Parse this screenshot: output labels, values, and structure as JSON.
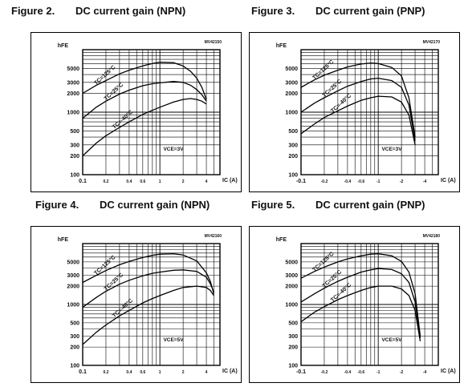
{
  "charts": [
    {
      "figure_label": "Figure 2.",
      "figure_title": "DC current gain (NPN)",
      "code": "MV42150",
      "condition": "VCE=3V",
      "polarity": "npn",
      "chart_data": {
        "type": "line",
        "title": "DC current gain (NPN)",
        "xlabel": "IC (A)",
        "ylabel": "hFE",
        "xscale": "log",
        "yscale": "log",
        "xlim": [
          0.1,
          6
        ],
        "ylim": [
          100,
          10000
        ],
        "grid": true,
        "x_ticks": [
          "0.1",
          "0.2",
          "0.4",
          "0.6",
          "1",
          "2",
          "4"
        ],
        "y_ticks": [
          "100",
          "200",
          "300",
          "500",
          "1000",
          "2000",
          "3000",
          "5000"
        ],
        "series": [
          {
            "name": "TC=125°C",
            "x": [
              0.1,
              0.15,
              0.2,
              0.3,
              0.4,
              0.6,
              0.8,
              1,
              1.5,
              2,
              2.5,
              3,
              3.5,
              4
            ],
            "y": [
              2000,
              2700,
              3200,
              4100,
              4700,
              5500,
              6000,
              6300,
              6200,
              5500,
              4500,
              3500,
              2500,
              1600
            ]
          },
          {
            "name": "TC=25°C",
            "x": [
              0.1,
              0.15,
              0.2,
              0.3,
              0.4,
              0.6,
              0.8,
              1,
              1.5,
              2,
              2.5,
              3,
              3.5,
              4
            ],
            "y": [
              800,
              1200,
              1500,
              1950,
              2250,
              2650,
              2850,
              2950,
              3100,
              3000,
              2700,
              2300,
              1900,
              1500
            ]
          },
          {
            "name": "TC=-40°C",
            "x": [
              0.1,
              0.15,
              0.2,
              0.3,
              0.4,
              0.6,
              0.8,
              1,
              1.5,
              2,
              2.5,
              3,
              3.5,
              4
            ],
            "y": [
              200,
              320,
              420,
              570,
              700,
              920,
              1070,
              1200,
              1450,
              1600,
              1650,
              1600,
              1500,
              1350
            ]
          }
        ]
      }
    },
    {
      "figure_label": "Figure 3.",
      "figure_title": "DC current gain (PNP)",
      "code": "MV42170",
      "condition": "VCE=3V",
      "polarity": "pnp",
      "chart_data": {
        "type": "line",
        "title": "DC current gain (PNP)",
        "xlabel": "IC (A)",
        "ylabel": "hFE",
        "xscale": "log",
        "yscale": "log",
        "xlim": [
          -0.1,
          -6
        ],
        "ylim": [
          100,
          10000
        ],
        "grid": true,
        "x_ticks": [
          "-0.1",
          "-0.2",
          "-0.4",
          "-0.6",
          "-1",
          "-2",
          "-4"
        ],
        "y_ticks": [
          "100",
          "200",
          "300",
          "500",
          "1000",
          "2000",
          "3000",
          "5000"
        ],
        "series": [
          {
            "name": "TC=125°C",
            "x": [
              -0.1,
              -0.15,
              -0.2,
              -0.3,
              -0.4,
              -0.6,
              -0.8,
              -1,
              -1.5,
              -2,
              -2.5,
              -3
            ],
            "y": [
              2500,
              3300,
              3900,
              4700,
              5300,
              5900,
              6100,
              6000,
              5200,
              3800,
              1700,
              400
            ]
          },
          {
            "name": "TC=25°C",
            "x": [
              -0.1,
              -0.15,
              -0.2,
              -0.3,
              -0.4,
              -0.6,
              -0.8,
              -1,
              -1.5,
              -2,
              -2.5,
              -3
            ],
            "y": [
              1000,
              1400,
              1700,
              2200,
              2600,
              3100,
              3400,
              3500,
              3200,
              2500,
              1300,
              350
            ]
          },
          {
            "name": "TC=-40°C",
            "x": [
              -0.1,
              -0.15,
              -0.2,
              -0.3,
              -0.4,
              -0.6,
              -0.8,
              -1,
              -1.5,
              -2,
              -2.5,
              -3
            ],
            "y": [
              450,
              650,
              820,
              1050,
              1250,
              1550,
              1700,
              1800,
              1750,
              1450,
              900,
              300
            ]
          }
        ]
      }
    },
    {
      "figure_label": "Figure 4.",
      "figure_title": "DC current gain (NPN)",
      "code": "MV42160",
      "condition": "VCE=5V",
      "polarity": "npn",
      "chart_data": {
        "type": "line",
        "title": "DC current gain (NPN)",
        "xlabel": "IC (A)",
        "ylabel": "hFE",
        "xscale": "log",
        "yscale": "log",
        "xlim": [
          0.1,
          6
        ],
        "ylim": [
          100,
          10000
        ],
        "grid": true,
        "x_ticks": [
          "0.1",
          "0.2",
          "0.4",
          "0.6",
          "1",
          "2",
          "4"
        ],
        "y_ticks": [
          "100",
          "200",
          "300",
          "500",
          "1000",
          "2000",
          "3000",
          "5000"
        ],
        "series": [
          {
            "name": "TC=125°C",
            "x": [
              0.1,
              0.15,
              0.2,
              0.3,
              0.4,
              0.6,
              0.8,
              1,
              1.5,
              2,
              3,
              4,
              4.5,
              5
            ],
            "y": [
              2300,
              3000,
              3600,
              4500,
              5100,
              5900,
              6400,
              6700,
              6800,
              6500,
              5200,
              3300,
              2400,
              1500
            ]
          },
          {
            "name": "TC=25°C",
            "x": [
              0.1,
              0.15,
              0.2,
              0.3,
              0.4,
              0.6,
              0.8,
              1,
              1.5,
              2,
              3,
              4,
              4.5,
              5
            ],
            "y": [
              900,
              1300,
              1650,
              2150,
              2500,
              2950,
              3250,
              3400,
              3650,
              3700,
              3500,
              2800,
              2200,
              1600
            ]
          },
          {
            "name": "TC=-40°C",
            "x": [
              0.1,
              0.15,
              0.2,
              0.3,
              0.4,
              0.6,
              0.8,
              1,
              1.5,
              2,
              3,
              4,
              4.5,
              5
            ],
            "y": [
              220,
              350,
              460,
              650,
              800,
              1060,
              1250,
              1400,
              1700,
              1900,
              2000,
              1900,
              1700,
              1400
            ]
          }
        ]
      }
    },
    {
      "figure_label": "Figure 5.",
      "figure_title": "DC current gain (PNP)",
      "code": "MV42180",
      "condition": "VCE=5V",
      "polarity": "pnp",
      "chart_data": {
        "type": "line",
        "title": "DC current gain (PNP)",
        "xlabel": "IC (A)",
        "ylabel": "hFE",
        "xscale": "log",
        "yscale": "log",
        "xlim": [
          -0.1,
          -6
        ],
        "ylim": [
          100,
          10000
        ],
        "grid": true,
        "x_ticks": [
          "-0.1",
          "-0.2",
          "-0.4",
          "-0.6",
          "-1",
          "-2",
          "-4"
        ],
        "y_ticks": [
          "100",
          "200",
          "300",
          "500",
          "1000",
          "2000",
          "3000",
          "5000"
        ],
        "series": [
          {
            "name": "TC=125°C",
            "x": [
              -0.1,
              -0.15,
              -0.2,
              -0.3,
              -0.4,
              -0.6,
              -0.8,
              -1,
              -1.5,
              -2,
              -2.5,
              -3,
              -3.5
            ],
            "y": [
              2700,
              3500,
              4100,
              5000,
              5600,
              6300,
              6700,
              6800,
              6300,
              5100,
              3400,
              1500,
              300
            ]
          },
          {
            "name": "TC=25°C",
            "x": [
              -0.1,
              -0.15,
              -0.2,
              -0.3,
              -0.4,
              -0.6,
              -0.8,
              -1,
              -1.5,
              -2,
              -2.5,
              -3,
              -3.5
            ],
            "y": [
              1100,
              1500,
              1850,
              2400,
              2800,
              3400,
              3700,
              3900,
              3750,
              3200,
              2300,
              1100,
              280
            ]
          },
          {
            "name": "TC=-40°C",
            "x": [
              -0.1,
              -0.15,
              -0.2,
              -0.3,
              -0.4,
              -0.6,
              -0.8,
              -1,
              -1.5,
              -2,
              -2.5,
              -3,
              -3.5
            ],
            "y": [
              520,
              750,
              920,
              1200,
              1400,
              1700,
              1900,
              2000,
              2000,
              1800,
              1400,
              800,
              250
            ]
          }
        ]
      }
    }
  ]
}
